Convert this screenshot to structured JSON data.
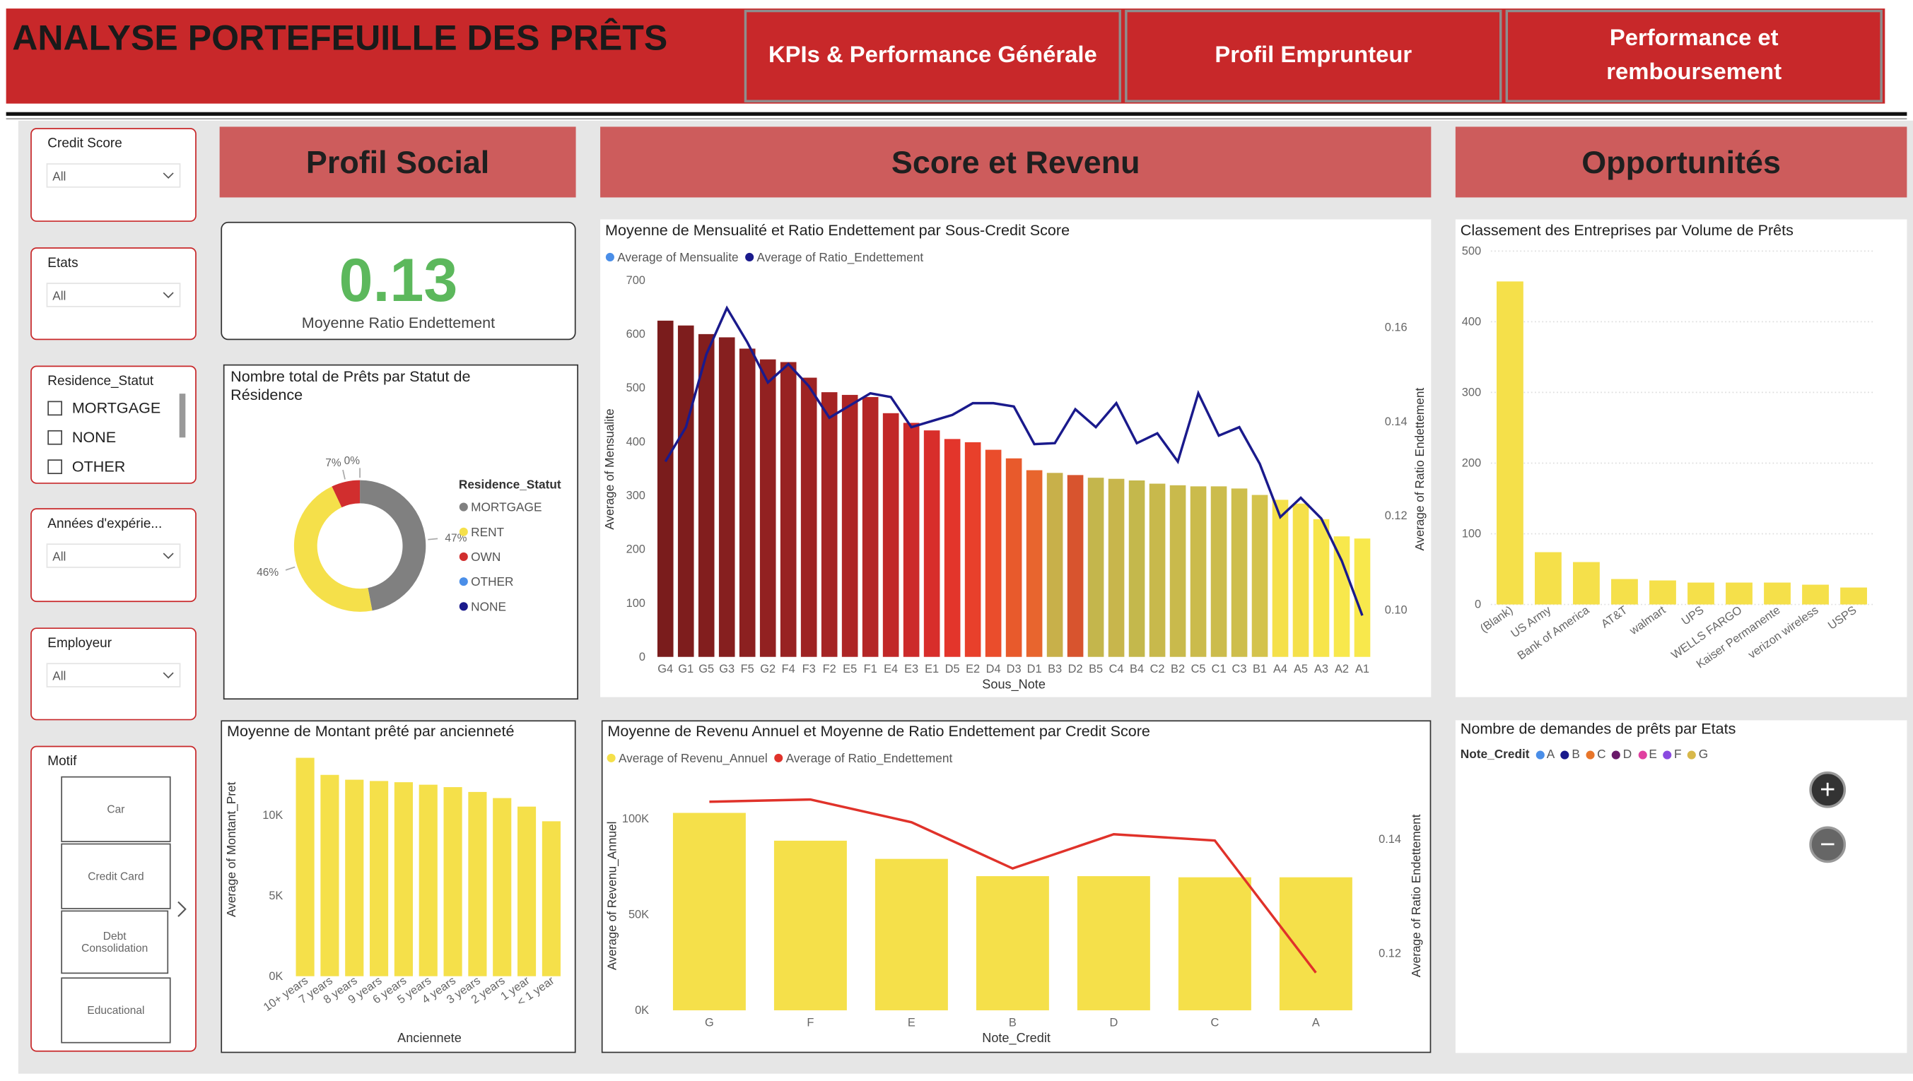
{
  "header": {
    "title": "ANALYSE PORTEFEUILLE DES PRÊTS",
    "nav": [
      "KPIs & Performance Générale",
      "Profil Emprunteur",
      "Performance et remboursement"
    ]
  },
  "filters": [
    {
      "label": "Credit Score",
      "value": "All"
    },
    {
      "label": "Etats",
      "value": "All"
    },
    {
      "label": "Residence_Statut",
      "options": [
        "MORTGAGE",
        "NONE",
        "OTHER"
      ]
    },
    {
      "label": "Années d'expérie...",
      "value": "All"
    },
    {
      "label": "Employeur",
      "value": "All"
    },
    {
      "label": "Motif",
      "options": [
        "Car",
        "Credit Card",
        "Debt Consolidation",
        "Educational"
      ]
    }
  ],
  "sections": [
    "Profil Social",
    "Score et Revenu",
    "Opportunités"
  ],
  "kpi": {
    "value": 0.13,
    "label": "Moyenne Ratio Endettement"
  },
  "chart_data": [
    {
      "type": "donut",
      "title": "Nombre total de Prêts par Statut de Résidence",
      "legend_title": "Residence_Statut",
      "categories": [
        "MORTGAGE",
        "RENT",
        "OWN",
        "OTHER",
        "NONE"
      ],
      "values": [
        47,
        46,
        7,
        0,
        0
      ],
      "value_labels": [
        "47%",
        "46%",
        "7%",
        "0%",
        null
      ],
      "colors": [
        "#808080",
        "#f5e04a",
        "#d12e2e",
        "#4a8ee8",
        "#1a1a8c"
      ]
    },
    {
      "type": "combo",
      "title": "Moyenne de Mensualité et Ratio Endettement par Sous-Credit Score",
      "categories": [
        "G4",
        "G1",
        "G5",
        "G3",
        "F5",
        "G2",
        "F4",
        "F3",
        "F2",
        "E5",
        "F1",
        "E4",
        "E3",
        "E1",
        "D5",
        "E2",
        "D4",
        "D3",
        "D1",
        "B3",
        "D2",
        "B5",
        "C4",
        "B4",
        "C2",
        "B2",
        "C5",
        "C1",
        "C3",
        "B1",
        "A4",
        "A5",
        "A3",
        "A2",
        "A1"
      ],
      "series": [
        {
          "name": "Average of Mensualite",
          "color": "#4a8ee8",
          "colors": [
            "#7a1c1c",
            "#7e1d1d",
            "#821e1e",
            "#861f1f",
            "#8c2020",
            "#922121",
            "#982222",
            "#9e2323",
            "#a52424",
            "#ad2525",
            "#b42626",
            "#c12828",
            "#cc2b2b",
            "#d82e2b",
            "#e3352b",
            "#e8402b",
            "#ea4d2c",
            "#e85a2c",
            "#e8652e",
            "#c8b04a",
            "#d8542e",
            "#c4b64c",
            "#c8b64c",
            "#c4b84c",
            "#c8b94c",
            "#c9ba4c",
            "#cbbb4c",
            "#ccbc4c",
            "#cebe4c",
            "#d4c34c",
            "#f5e04a",
            "#f5e04a",
            "#f7e54a",
            "#f8e84c",
            "#f8e84c"
          ],
          "values": [
            625,
            616,
            600,
            594,
            573,
            553,
            548,
            519,
            492,
            487,
            483,
            453,
            435,
            421,
            405,
            399,
            385,
            369,
            347,
            342,
            338,
            333,
            331,
            328,
            322,
            319,
            317,
            317,
            313,
            301,
            292,
            285,
            256,
            224,
            220
          ]
        },
        {
          "name": "Average of Ratio_Endettement",
          "color": "#1a1a8c",
          "axis": "y2",
          "values": [
            0.1315,
            0.1388,
            0.1543,
            0.1641,
            0.1568,
            0.1483,
            0.1522,
            0.1475,
            0.1408,
            0.1434,
            0.146,
            0.1452,
            0.1388,
            0.1401,
            0.1414,
            0.1439,
            0.1439,
            0.1432,
            0.1352,
            0.1354,
            0.1426,
            0.1388,
            0.1439,
            0.1354,
            0.1375,
            0.1315,
            0.146,
            0.137,
            0.1388,
            0.131,
            0.1197,
            0.1238,
            0.1194,
            0.1104,
            0.0988
          ]
        }
      ],
      "ylim": [
        0,
        700
      ],
      "yticks": [
        0,
        100,
        200,
        300,
        400,
        500,
        600,
        700
      ],
      "y2lim": [
        0.09,
        0.17
      ],
      "y2ticks": [
        {
          "value": 0.1,
          "label": "0.10"
        },
        0.12,
        0.14,
        0.16
      ],
      "y_label": "Average of Mensualite",
      "y2_label": "Average of Ratio Endettement",
      "x_label": "Sous_Note",
      "grid": false
    },
    {
      "type": "bar",
      "title": "Classement des Entreprises par Volume de Prêts",
      "categories": [
        "(Blank)",
        "US Army",
        "Bank of America",
        "AT&T",
        "walmart",
        "UPS",
        "WELLS FARGO",
        "Kaiser Permanente",
        "verizon wireless",
        "USPS"
      ],
      "values": [
        457,
        74,
        60,
        36,
        34,
        31,
        31,
        31,
        28,
        24
      ],
      "color": "#f5e04a",
      "ylim": [
        0,
        500
      ],
      "yticks": [
        0,
        100,
        200,
        300,
        400,
        500
      ],
      "grid": true
    },
    {
      "type": "bar",
      "title": "Moyenne de Montant prêté par ancienneté",
      "categories": [
        "10+ years",
        "7 years",
        "8 years",
        "9 years",
        "6 years",
        "5 years",
        "4 years",
        "3 years",
        "2 years",
        "1 year",
        "< 1 year"
      ],
      "values": [
        13560,
        12500,
        12200,
        12120,
        12045,
        11890,
        11740,
        11440,
        11060,
        10530,
        9620
      ],
      "color": "#f5e04a",
      "ylim": [
        0,
        14000
      ],
      "yticks": [
        {
          "value": 0,
          "label": "0K"
        },
        {
          "value": 5000,
          "label": "5K"
        },
        {
          "value": 10000,
          "label": "10K"
        }
      ],
      "y_label": "Average of Montant_Pret",
      "x_label": "Anciennete",
      "grid": false
    },
    {
      "type": "combo",
      "title": "Moyenne de Revenu Annuel et Moyenne de Ratio Endettement par Credit Score",
      "categories": [
        "G",
        "F",
        "E",
        "B",
        "D",
        "C",
        "A"
      ],
      "series": [
        {
          "name": "Average of Revenu_Annuel",
          "color": "#f5e04a",
          "values": [
            103000,
            88500,
            79000,
            70000,
            70000,
            69400,
            69400
          ]
        },
        {
          "name": "Average of Ratio_Endettement",
          "color": "#e0322a",
          "axis": "y2",
          "values": [
            0.1466,
            0.147,
            0.143,
            0.1349,
            0.1409,
            0.1398,
            0.1166
          ]
        }
      ],
      "ylim": [
        0,
        110000
      ],
      "yticks": [
        {
          "value": 0,
          "label": "0K"
        },
        {
          "value": 50000,
          "label": "50K"
        },
        {
          "value": 100000,
          "label": "100K"
        }
      ],
      "y2lim": [
        0.11,
        0.147
      ],
      "y2ticks": [
        0.12,
        0.14
      ],
      "y_label": "Average of Revenu_Annuel",
      "y2_label": "Average of Ratio Endettement",
      "x_label": "Note_Credit",
      "grid": false
    }
  ],
  "map": {
    "title": "Nombre de demandes de prêts par Etats",
    "legend_title": "Note_Credit",
    "legend": [
      {
        "name": "A",
        "color": "#4a8ee8"
      },
      {
        "name": "B",
        "color": "#1a1a8c"
      },
      {
        "name": "C",
        "color": "#e8762a"
      },
      {
        "name": "D",
        "color": "#6a1a6a"
      },
      {
        "name": "E",
        "color": "#e040a0"
      },
      {
        "name": "F",
        "color": "#8a4ae0"
      },
      {
        "name": "G",
        "color": "#d8b84a"
      }
    ]
  }
}
